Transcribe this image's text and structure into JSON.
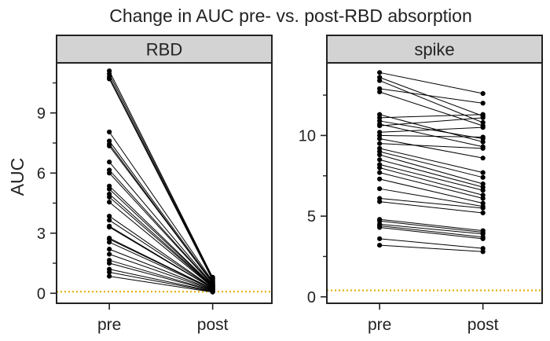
{
  "chart_data": {
    "type": "line",
    "title": "Change in AUC pre- vs. post-RBD absorption",
    "threshold_color": "#e6ac00",
    "line_color": "#000000",
    "strip_color": "#d3d3d3",
    "panels": [
      {
        "name": "RBD",
        "strip_label": "RBD",
        "ylabel": "AUC",
        "categories": [
          "pre",
          "post"
        ],
        "ylim": [
          -0.5,
          11.5
        ],
        "yticks": [
          0,
          3,
          6,
          9
        ],
        "ytick_labels": [
          "0",
          "3",
          "6",
          "9"
        ],
        "minor_yticks": [
          1.5,
          4.5,
          7.5,
          10.5
        ],
        "threshold": 0.08,
        "pairs": [
          [
            11.1,
            0.8
          ],
          [
            10.95,
            0.75
          ],
          [
            10.8,
            0.7
          ],
          [
            10.7,
            0.65
          ],
          [
            8.05,
            0.6
          ],
          [
            7.6,
            0.55
          ],
          [
            7.45,
            0.5
          ],
          [
            7.35,
            0.5
          ],
          [
            6.55,
            0.45
          ],
          [
            6.15,
            0.42
          ],
          [
            6.0,
            0.4
          ],
          [
            5.35,
            0.38
          ],
          [
            5.2,
            0.36
          ],
          [
            4.95,
            0.34
          ],
          [
            4.8,
            0.32
          ],
          [
            4.55,
            0.3
          ],
          [
            3.85,
            0.28
          ],
          [
            3.65,
            0.26
          ],
          [
            3.35,
            0.25
          ],
          [
            3.3,
            0.24
          ],
          [
            2.75,
            0.22
          ],
          [
            2.7,
            0.21
          ],
          [
            2.55,
            0.2
          ],
          [
            2.2,
            0.18
          ],
          [
            1.95,
            0.16
          ],
          [
            1.65,
            0.14
          ],
          [
            1.5,
            0.12
          ],
          [
            1.2,
            0.1
          ],
          [
            1.05,
            0.08
          ],
          [
            0.85,
            0.06
          ]
        ]
      },
      {
        "name": "spike",
        "strip_label": "spike",
        "ylabel": "",
        "categories": [
          "pre",
          "post"
        ],
        "ylim": [
          -0.4,
          14.5
        ],
        "yticks": [
          0,
          5,
          10
        ],
        "ytick_labels": [
          "0",
          "5",
          "10"
        ],
        "minor_yticks": [
          2.5,
          7.5,
          12.5
        ],
        "threshold": 0.4,
        "pairs": [
          [
            13.9,
            12.6
          ],
          [
            13.6,
            11.2
          ],
          [
            13.4,
            10.8
          ],
          [
            12.9,
            12.0
          ],
          [
            12.7,
            10.6
          ],
          [
            11.3,
            9.6
          ],
          [
            11.1,
            11.3
          ],
          [
            10.9,
            9.8
          ],
          [
            10.7,
            9.3
          ],
          [
            10.6,
            11.1
          ],
          [
            10.2,
            10.5
          ],
          [
            10.0,
            9.9
          ],
          [
            9.8,
            8.6
          ],
          [
            9.5,
            9.2
          ],
          [
            9.2,
            7.7
          ],
          [
            9.0,
            7.4
          ],
          [
            8.8,
            7.0
          ],
          [
            8.5,
            6.8
          ],
          [
            8.2,
            6.6
          ],
          [
            8.0,
            6.3
          ],
          [
            7.7,
            6.1
          ],
          [
            7.3,
            5.8
          ],
          [
            6.7,
            5.6
          ],
          [
            6.1,
            5.5
          ],
          [
            5.9,
            5.2
          ],
          [
            4.8,
            4.1
          ],
          [
            4.7,
            4.0
          ],
          [
            4.5,
            3.9
          ],
          [
            4.4,
            3.7
          ],
          [
            4.3,
            3.6
          ],
          [
            3.6,
            3.0
          ],
          [
            3.2,
            2.8
          ]
        ]
      }
    ]
  }
}
